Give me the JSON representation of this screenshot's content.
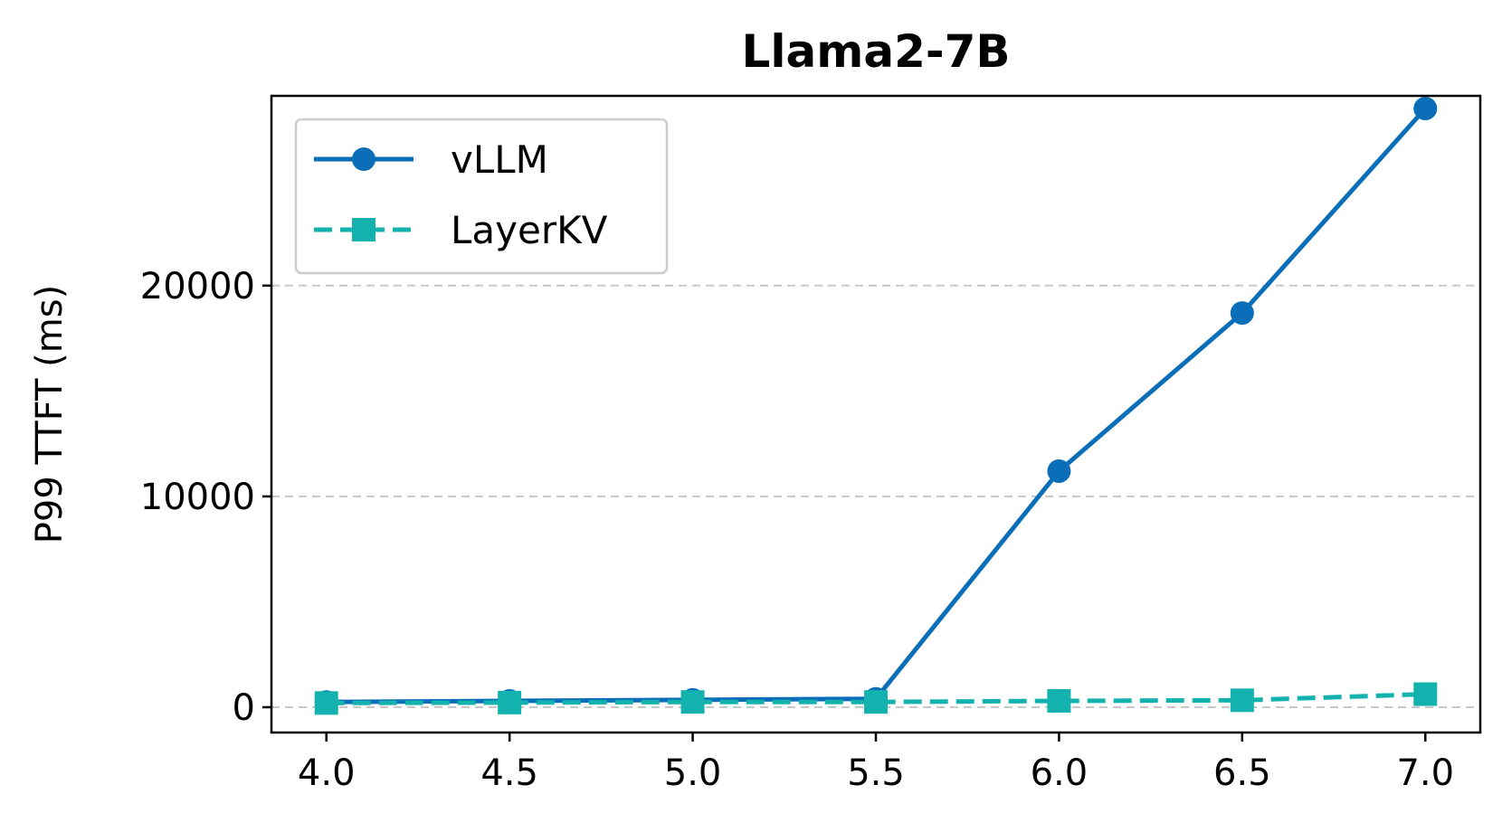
{
  "chart_data": {
    "type": "line",
    "title": "Llama2-7B",
    "xlabel": "",
    "ylabel": "P99 TTFT (ms)",
    "x": [
      4.0,
      4.5,
      5.0,
      5.5,
      6.0,
      6.5,
      7.0
    ],
    "x_tick_labels": [
      "4.0",
      "4.5",
      "5.0",
      "5.5",
      "6.0",
      "6.5",
      "7.0"
    ],
    "y_ticks": [
      0,
      10000,
      20000
    ],
    "y_tick_labels": [
      "0",
      "10000",
      "20000"
    ],
    "xlim": [
      3.85,
      7.15
    ],
    "ylim": [
      -1200,
      29000
    ],
    "grid": "horizontal dashed",
    "legend_position": "top-left",
    "series": [
      {
        "name": "vLLM",
        "values": [
          250,
          300,
          350,
          400,
          11200,
          18700,
          28400
        ],
        "color": "#0a6fb8",
        "marker": "circle",
        "linestyle": "solid"
      },
      {
        "name": "LayerKV",
        "values": [
          200,
          220,
          250,
          250,
          300,
          330,
          620
        ],
        "color": "#13b2ae",
        "marker": "square",
        "linestyle": "dashed"
      }
    ]
  }
}
